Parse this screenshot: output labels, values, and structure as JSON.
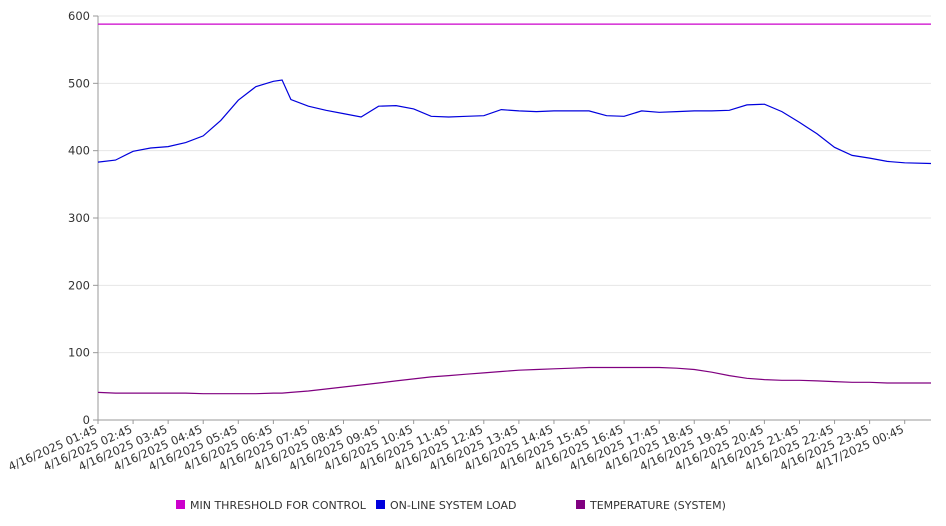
{
  "chart_data": {
    "type": "line",
    "title": "",
    "xlabel": "",
    "ylabel": "",
    "ylim": [
      0,
      600
    ],
    "yticks": [
      0,
      100,
      200,
      300,
      400,
      500,
      600
    ],
    "grid": true,
    "legend_position": "bottom",
    "x_tick_labels": [
      "4/16/2025 01:45",
      "4/16/2025 02:45",
      "4/16/2025 03:45",
      "4/16/2025 04:45",
      "4/16/2025 05:45",
      "4/16/2025 06:45",
      "4/16/2025 07:45",
      "4/16/2025 08:45",
      "4/16/2025 09:45",
      "4/16/2025 10:45",
      "4/16/2025 11:45",
      "4/16/2025 12:45",
      "4/16/2025 13:45",
      "4/16/2025 14:45",
      "4/16/2025 15:45",
      "4/16/2025 16:45",
      "4/16/2025 17:45",
      "4/16/2025 18:45",
      "4/16/2025 19:45",
      "4/16/2025 20:45",
      "4/16/2025 21:45",
      "4/16/2025 22:45",
      "4/16/2025 23:45",
      "4/17/2025 00:45"
    ],
    "x": [
      "4/16/2025 01:45",
      "4/16/2025 02:15",
      "4/16/2025 02:45",
      "4/16/2025 03:15",
      "4/16/2025 03:45",
      "4/16/2025 04:15",
      "4/16/2025 04:45",
      "4/16/2025 05:15",
      "4/16/2025 05:45",
      "4/16/2025 06:15",
      "4/16/2025 06:45",
      "4/16/2025 07:00",
      "4/16/2025 07:15",
      "4/16/2025 07:45",
      "4/16/2025 08:15",
      "4/16/2025 08:45",
      "4/16/2025 09:15",
      "4/16/2025 09:45",
      "4/16/2025 10:15",
      "4/16/2025 10:45",
      "4/16/2025 11:15",
      "4/16/2025 11:45",
      "4/16/2025 12:15",
      "4/16/2025 12:45",
      "4/16/2025 13:15",
      "4/16/2025 13:45",
      "4/16/2025 14:15",
      "4/16/2025 14:45",
      "4/16/2025 15:15",
      "4/16/2025 15:45",
      "4/16/2025 16:15",
      "4/16/2025 16:45",
      "4/16/2025 17:15",
      "4/16/2025 17:45",
      "4/16/2025 18:15",
      "4/16/2025 18:45",
      "4/16/2025 19:15",
      "4/16/2025 19:45",
      "4/16/2025 20:15",
      "4/16/2025 20:45",
      "4/16/2025 21:15",
      "4/16/2025 21:45",
      "4/16/2025 22:15",
      "4/16/2025 22:45",
      "4/16/2025 23:15",
      "4/16/2025 23:45",
      "4/17/2025 00:15",
      "4/17/2025 00:45",
      "4/17/2025 01:30"
    ],
    "series": [
      {
        "name": "MIN THRESHOLD FOR CONTROL",
        "color": "#cc00cc",
        "values": [
          588,
          588,
          588,
          588,
          588,
          588,
          588,
          588,
          588,
          588,
          588,
          588,
          588,
          588,
          588,
          588,
          588,
          588,
          588,
          588,
          588,
          588,
          588,
          588,
          588,
          588,
          588,
          588,
          588,
          588,
          588,
          588,
          588,
          588,
          588,
          588,
          588,
          588,
          588,
          588,
          588,
          588,
          588,
          588,
          588,
          588,
          588,
          588,
          588
        ]
      },
      {
        "name": "ON-LINE SYSTEM LOAD",
        "color": "#0000dd",
        "values": [
          383,
          386,
          399,
          404,
          406,
          412,
          422,
          445,
          475,
          495,
          503,
          505,
          476,
          466,
          460,
          455,
          450,
          466,
          467,
          462,
          451,
          450,
          451,
          452,
          461,
          459,
          458,
          459,
          459,
          459,
          452,
          451,
          459,
          457,
          458,
          459,
          459,
          460,
          468,
          469,
          458,
          442,
          425,
          405,
          393,
          389,
          384,
          382,
          381
        ]
      },
      {
        "name": "TEMPERATURE (SYSTEM)",
        "color": "#800080",
        "values": [
          41,
          40,
          40,
          40,
          40,
          40,
          39,
          39,
          39,
          39,
          40,
          40,
          41,
          43,
          46,
          49,
          52,
          55,
          58,
          61,
          64,
          66,
          68,
          70,
          72,
          74,
          75,
          76,
          77,
          78,
          78,
          78,
          78,
          78,
          77,
          75,
          71,
          66,
          62,
          60,
          59,
          59,
          58,
          57,
          56,
          56,
          55,
          55,
          55
        ]
      }
    ]
  }
}
